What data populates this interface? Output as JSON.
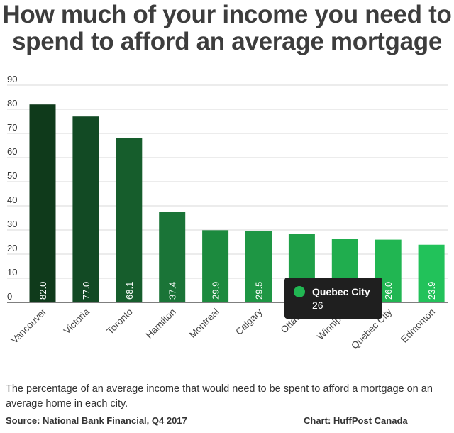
{
  "chart_data": {
    "type": "bar",
    "title": "How much of your income you need to spend to afford an average mortgage",
    "categories": [
      "Vancouver",
      "Victoria",
      "Toronto",
      "Hamilton",
      "Montreal",
      "Calgary",
      "Ottawa",
      "Winnipeg",
      "Quebec City",
      "Edmonton"
    ],
    "values": [
      82.0,
      77.0,
      68.1,
      37.4,
      29.9,
      29.5,
      28.5,
      26.2,
      26.0,
      23.9
    ],
    "value_labels": [
      "82.0",
      "77.0",
      "68.1",
      "37.4",
      "29.9",
      "29.5",
      "",
      "",
      "26.0",
      "23.9"
    ],
    "colors": [
      "#0f3a1b",
      "#124a24",
      "#165d2c",
      "#1a7437",
      "#1c8a3e",
      "#1e9644",
      "#1fa048",
      "#20ad4e",
      "#21b652",
      "#22c25a"
    ],
    "yticks": [
      0,
      10,
      20,
      30,
      40,
      50,
      60,
      70,
      80,
      90
    ],
    "ylim": [
      0,
      90
    ],
    "xlabel": "",
    "ylabel": "",
    "grid": true
  },
  "tooltip": {
    "category": "Quebec City",
    "value": "26",
    "marker_color": "#21b652"
  },
  "caption": "The percentage of an average income that would need to be spent to afford a mortgage on an average home in each city.",
  "source": "Source: National Bank Financial, Q4 2017",
  "credit": "Chart: HuffPost Canada"
}
